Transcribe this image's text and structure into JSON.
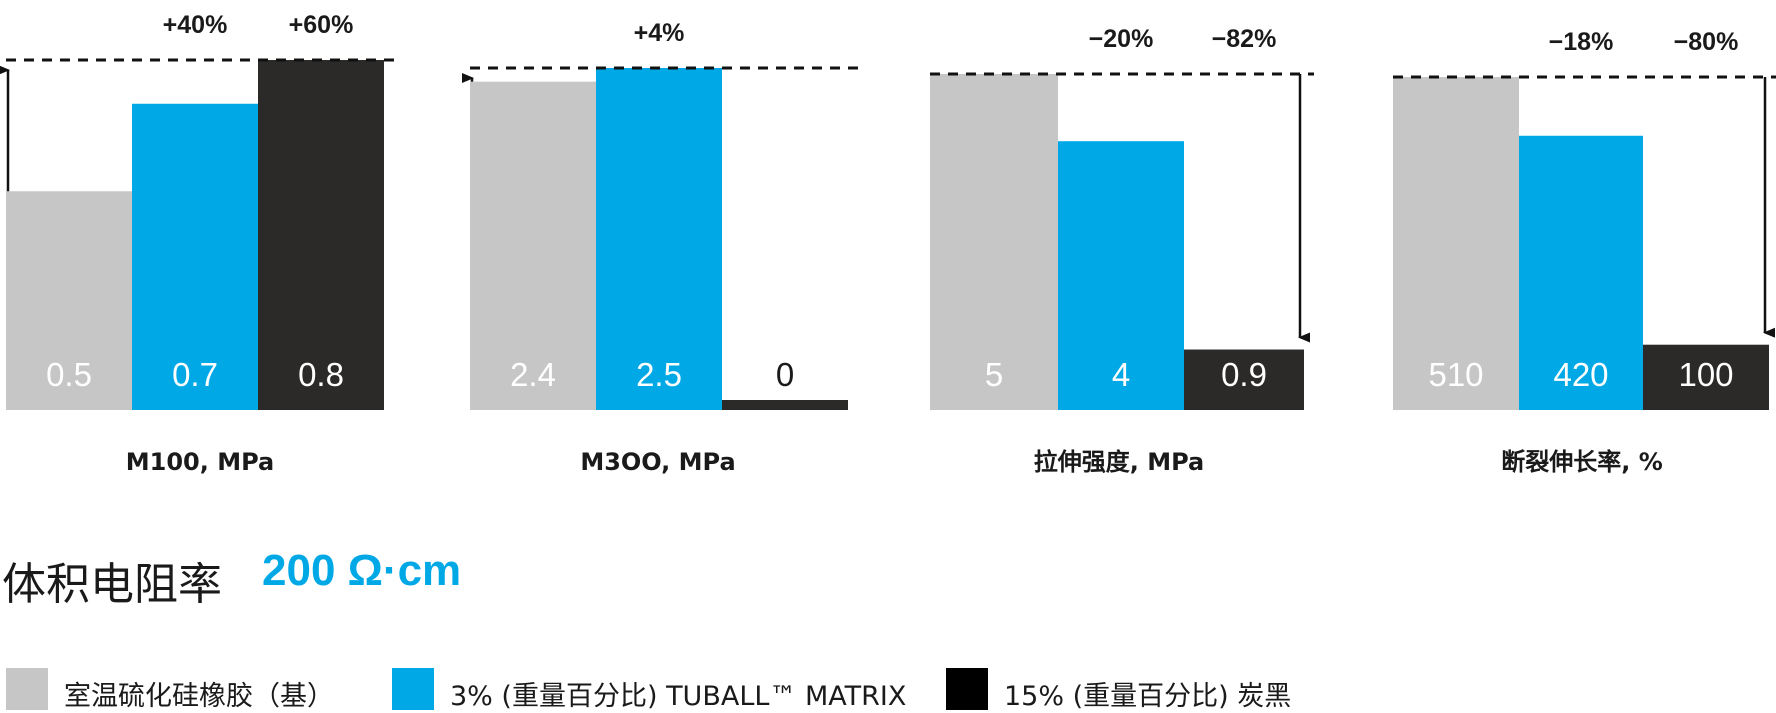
{
  "colors": {
    "base": "#c6c6c6",
    "tuball": "#00a9e6",
    "carbon": "#2b2a29",
    "text": "#1a1a1a",
    "accent": "#00a9e6"
  },
  "chart_data": [
    {
      "type": "bar",
      "title": "M100, MPa",
      "categories": [
        "室温硫化硅橡胶（基）",
        "3% (重量百分比) TUBALL™ MATRIX",
        "15% (重量百分比) 炭黑"
      ],
      "values": [
        0.5,
        0.7,
        0.8
      ],
      "value_labels": [
        "0.5",
        "0.7",
        "0.8"
      ],
      "changes": [
        "",
        "+40%",
        "+60%"
      ],
      "arrow_direction": "up",
      "reference": "dashed line at highest bar"
    },
    {
      "type": "bar",
      "title": "M3OO, MPa",
      "categories": [
        "室温硫化硅橡胶（基）",
        "3% (重量百分比) TUBALL™ MATRIX",
        "15% (重量百分比) 炭黑"
      ],
      "values": [
        2.4,
        2.5,
        0
      ],
      "value_labels": [
        "2.4",
        "2.5",
        "0"
      ],
      "changes": [
        "",
        "+4%",
        ""
      ],
      "arrow_direction": "up",
      "reference": "dashed line at highest bar"
    },
    {
      "type": "bar",
      "title": "拉伸强度, MPa",
      "categories": [
        "室温硫化硅橡胶（基）",
        "3% (重量百分比) TUBALL™ MATRIX",
        "15% (重量百分比) 炭黑"
      ],
      "values": [
        5,
        4,
        0.9
      ],
      "value_labels": [
        "5",
        "4",
        "0.9"
      ],
      "changes": [
        "",
        "−20%",
        "−82%"
      ],
      "arrow_direction": "down",
      "reference": "dashed line at base bar"
    },
    {
      "type": "bar",
      "title": "断裂伸长率, %",
      "categories": [
        "室温硫化硅橡胶（基）",
        "3% (重量百分比) TUBALL™ MATRIX",
        "15% (重量百分比) 炭黑"
      ],
      "values": [
        510,
        420,
        100
      ],
      "value_labels": [
        "510",
        "420",
        "100"
      ],
      "changes": [
        "",
        "−18%",
        "−80%"
      ],
      "arrow_direction": "down",
      "reference": "dashed line at base bar"
    }
  ],
  "resistivity": {
    "label": "体积电阻率",
    "value": "200 Ω·cm"
  },
  "legend": [
    {
      "label": "室温硫化硅橡胶（基）",
      "color": "#c6c6c6"
    },
    {
      "label": "3% (重量百分比) TUBALL™ MATRIX",
      "color": "#00a9e6"
    },
    {
      "label": "15% (重量百分比) 炭黑",
      "color": "#000000"
    }
  ]
}
